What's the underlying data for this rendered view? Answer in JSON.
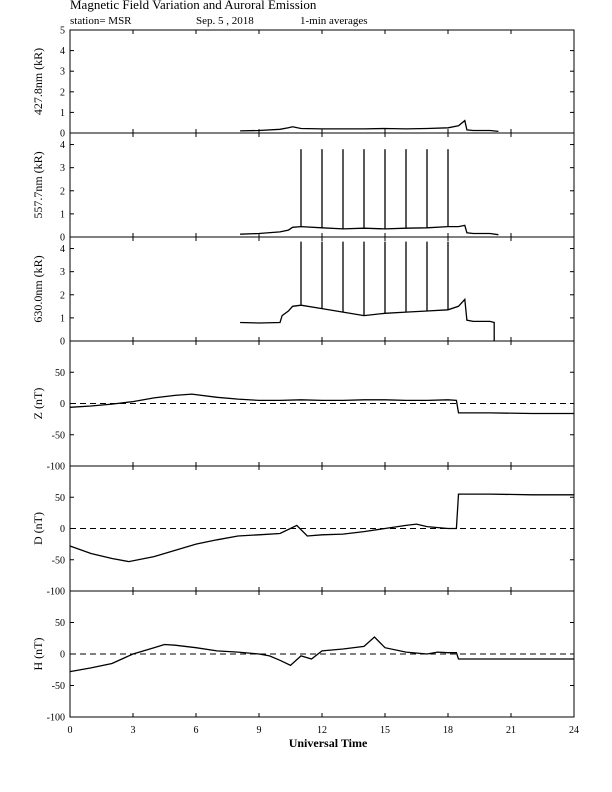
{
  "header": {
    "title": "Magnetic Field Variation and Auroral Emission",
    "station": "station= MSR",
    "date": "Sep. 5 , 2018",
    "averaging": "1-min averages"
  },
  "chart_data": [
    {
      "type": "line",
      "ylabel": "427.8nm (kR)",
      "ylim": [
        0,
        5
      ],
      "yticks": [
        0,
        1,
        2,
        3,
        4,
        5
      ],
      "series": [
        {
          "x": [
            8.1,
            9,
            10,
            10.4,
            10.6,
            11,
            12,
            13,
            14,
            15,
            16,
            17,
            18,
            18.5,
            18.8,
            18.9,
            19.2,
            20,
            20.4
          ],
          "y": [
            0.1,
            0.12,
            0.18,
            0.25,
            0.3,
            0.22,
            0.2,
            0.2,
            0.2,
            0.22,
            0.2,
            0.22,
            0.25,
            0.35,
            0.6,
            0.15,
            0.12,
            0.12,
            0.08
          ]
        }
      ],
      "spike_times": [],
      "spike_peak": null
    },
    {
      "type": "line",
      "ylabel": "557.7nm (kR)",
      "ylim": [
        0,
        4.5
      ],
      "yticks": [
        0,
        1,
        2,
        3,
        4
      ],
      "series": [
        {
          "x": [
            8.1,
            9,
            10,
            10.4,
            10.6,
            11,
            12,
            13,
            14,
            15,
            16,
            17,
            18,
            18.5,
            18.8,
            18.9,
            19.2,
            20,
            20.4
          ],
          "y": [
            0.12,
            0.15,
            0.22,
            0.3,
            0.42,
            0.45,
            0.4,
            0.35,
            0.38,
            0.35,
            0.38,
            0.4,
            0.45,
            0.45,
            0.5,
            0.18,
            0.15,
            0.15,
            0.1
          ]
        }
      ],
      "spike_times": [
        11.0,
        12.0,
        13.0,
        14.0,
        15.0,
        16.0,
        17.0,
        18.0
      ],
      "spike_peak": 3.8
    },
    {
      "type": "line",
      "ylabel": "630.0nm (kR)",
      "ylim": [
        0,
        4.5
      ],
      "yticks": [
        0,
        1,
        2,
        3,
        4
      ],
      "series": [
        {
          "x": [
            8.1,
            9,
            10,
            10.1,
            10.4,
            10.6,
            11,
            12,
            13,
            14,
            15,
            16,
            17,
            18,
            18.5,
            18.8,
            18.9,
            19.2,
            20,
            20.2,
            20.2
          ],
          "y": [
            0.8,
            0.78,
            0.8,
            1.1,
            1.3,
            1.5,
            1.55,
            1.4,
            1.25,
            1.1,
            1.2,
            1.25,
            1.3,
            1.35,
            1.5,
            1.8,
            0.9,
            0.85,
            0.85,
            0.8,
            0
          ]
        }
      ],
      "spike_times": [
        11.0,
        12.0,
        13.0,
        14.0,
        15.0,
        16.0,
        17.0,
        18.0
      ],
      "spike_peak": 4.3
    },
    {
      "type": "line",
      "ylabel": "Z (nT)",
      "ylim": [
        -100,
        100
      ],
      "yticks": [
        -100,
        -50,
        0,
        50
      ],
      "zero_line": true,
      "series": [
        {
          "x": [
            0,
            1,
            2,
            3,
            4,
            5,
            5.8,
            7,
            8,
            9,
            10,
            11,
            12,
            13,
            14,
            15,
            16,
            17,
            18,
            18.4,
            18.5,
            20,
            22,
            24
          ],
          "y": [
            -6,
            -4,
            -1,
            3,
            9,
            13,
            15,
            10,
            7,
            5,
            5,
            6,
            5,
            5,
            6,
            6,
            5,
            5,
            6,
            5,
            -15,
            -15,
            -16,
            -16
          ]
        }
      ]
    },
    {
      "type": "line",
      "ylabel": "D (nT)",
      "ylim": [
        -100,
        100
      ],
      "yticks": [
        -100,
        -50,
        0,
        50
      ],
      "zero_line": true,
      "series": [
        {
          "x": [
            0,
            1,
            2,
            2.8,
            4,
            5,
            6,
            7,
            8,
            9,
            10,
            10.8,
            11.3,
            12,
            13,
            14,
            15,
            16,
            16.5,
            17,
            18,
            18.4,
            18.5,
            20,
            22,
            24
          ],
          "y": [
            -28,
            -40,
            -48,
            -53,
            -45,
            -35,
            -25,
            -18,
            -12,
            -10,
            -8,
            5,
            -12,
            -10,
            -9,
            -5,
            0,
            5,
            7,
            3,
            0,
            0,
            55,
            55,
            54,
            54
          ]
        }
      ]
    },
    {
      "type": "line",
      "ylabel": "H (nT)",
      "ylim": [
        -100,
        100
      ],
      "yticks": [
        -100,
        -50,
        0,
        50
      ],
      "zero_line": true,
      "series": [
        {
          "x": [
            0,
            1,
            2,
            3,
            4,
            4.5,
            5,
            6,
            7,
            8,
            9,
            9.5,
            10,
            10.5,
            11,
            11.5,
            12,
            13,
            14,
            14.5,
            15,
            16,
            17,
            17.5,
            18,
            18.4,
            18.5,
            20,
            22,
            24
          ],
          "y": [
            -28,
            -22,
            -15,
            0,
            10,
            15,
            14,
            10,
            5,
            3,
            0,
            -3,
            -10,
            -18,
            -3,
            -8,
            5,
            8,
            12,
            27,
            10,
            3,
            0,
            3,
            2,
            2,
            -8,
            -8,
            -8,
            -8
          ]
        }
      ]
    }
  ],
  "xaxis": {
    "xlim": [
      0,
      24
    ],
    "ticks": [
      0,
      3,
      6,
      9,
      12,
      15,
      18,
      21,
      24
    ],
    "label": "Universal Time"
  },
  "colors": {
    "line": "#000000",
    "frame": "#000000",
    "background": "#ffffff"
  }
}
